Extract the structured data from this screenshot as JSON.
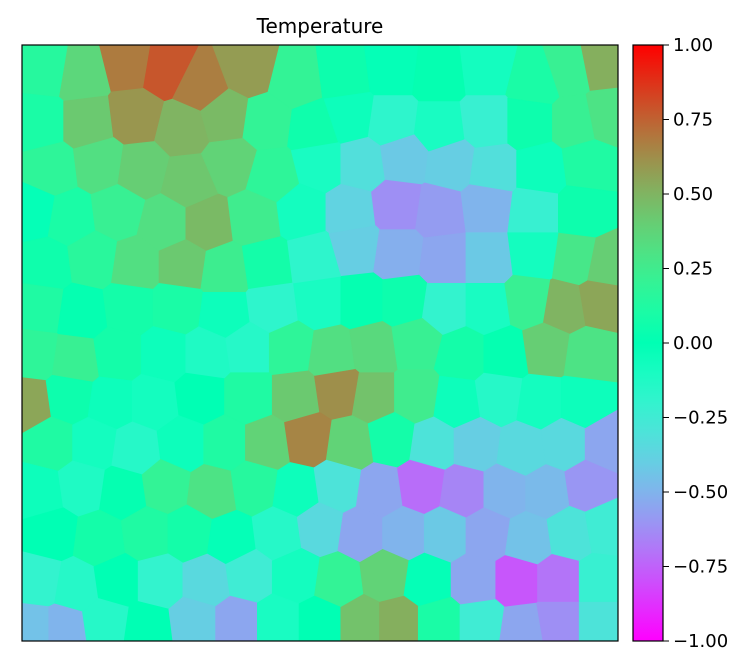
{
  "chart_data": {
    "type": "heatmap",
    "subtype": "voronoi",
    "title": "Temperature",
    "xlabel": "",
    "ylabel": "",
    "axis_ticks": "none",
    "colormap": "rainbow",
    "colorbar": {
      "range": [
        -1.0,
        1.0
      ],
      "ticks": [
        1.0,
        0.75,
        0.5,
        0.25,
        0.0,
        -0.25,
        -0.5,
        -0.75,
        -1.0
      ],
      "tick_labels": [
        "1.00",
        "0.75",
        "0.50",
        "0.25",
        "0.00",
        "−0.25",
        "−0.50",
        "−0.75",
        "−1.00"
      ],
      "placement": "right"
    },
    "cells": [
      {
        "x": 0.04,
        "y": 0.96,
        "value": 0.15
      },
      {
        "x": 0.1,
        "y": 0.95,
        "value": 0.36
      },
      {
        "x": 0.18,
        "y": 0.97,
        "value": 0.68
      },
      {
        "x": 0.24,
        "y": 0.96,
        "value": 0.78
      },
      {
        "x": 0.3,
        "y": 0.93,
        "value": 0.67
      },
      {
        "x": 0.38,
        "y": 0.96,
        "value": 0.58
      },
      {
        "x": 0.46,
        "y": 0.94,
        "value": 0.2
      },
      {
        "x": 0.54,
        "y": 0.95,
        "value": 0.05
      },
      {
        "x": 0.62,
        "y": 0.96,
        "value": -0.02
      },
      {
        "x": 0.7,
        "y": 0.95,
        "value": 0.02
      },
      {
        "x": 0.78,
        "y": 0.96,
        "value": -0.08
      },
      {
        "x": 0.86,
        "y": 0.94,
        "value": 0.1
      },
      {
        "x": 0.92,
        "y": 0.96,
        "value": 0.22
      },
      {
        "x": 0.97,
        "y": 0.97,
        "value": 0.52
      },
      {
        "x": 0.03,
        "y": 0.87,
        "value": 0.1
      },
      {
        "x": 0.11,
        "y": 0.87,
        "value": 0.42
      },
      {
        "x": 0.19,
        "y": 0.88,
        "value": 0.6
      },
      {
        "x": 0.27,
        "y": 0.86,
        "value": 0.5
      },
      {
        "x": 0.34,
        "y": 0.88,
        "value": 0.48
      },
      {
        "x": 0.41,
        "y": 0.87,
        "value": 0.2
      },
      {
        "x": 0.49,
        "y": 0.86,
        "value": 0.06
      },
      {
        "x": 0.55,
        "y": 0.88,
        "value": -0.05
      },
      {
        "x": 0.62,
        "y": 0.87,
        "value": -0.18
      },
      {
        "x": 0.7,
        "y": 0.86,
        "value": -0.1
      },
      {
        "x": 0.78,
        "y": 0.87,
        "value": -0.22
      },
      {
        "x": 0.85,
        "y": 0.87,
        "value": 0.05
      },
      {
        "x": 0.93,
        "y": 0.87,
        "value": 0.22
      },
      {
        "x": 0.98,
        "y": 0.88,
        "value": 0.3
      },
      {
        "x": 0.05,
        "y": 0.79,
        "value": 0.18
      },
      {
        "x": 0.13,
        "y": 0.8,
        "value": 0.32
      },
      {
        "x": 0.2,
        "y": 0.79,
        "value": 0.4
      },
      {
        "x": 0.28,
        "y": 0.77,
        "value": 0.43
      },
      {
        "x": 0.35,
        "y": 0.8,
        "value": 0.38
      },
      {
        "x": 0.42,
        "y": 0.78,
        "value": 0.18
      },
      {
        "x": 0.5,
        "y": 0.8,
        "value": -0.1
      },
      {
        "x": 0.57,
        "y": 0.8,
        "value": -0.32
      },
      {
        "x": 0.64,
        "y": 0.81,
        "value": -0.42
      },
      {
        "x": 0.72,
        "y": 0.8,
        "value": -0.4
      },
      {
        "x": 0.79,
        "y": 0.79,
        "value": -0.32
      },
      {
        "x": 0.87,
        "y": 0.79,
        "value": -0.05
      },
      {
        "x": 0.95,
        "y": 0.8,
        "value": 0.12
      },
      {
        "x": 0.02,
        "y": 0.72,
        "value": -0.02
      },
      {
        "x": 0.08,
        "y": 0.71,
        "value": 0.1
      },
      {
        "x": 0.16,
        "y": 0.72,
        "value": 0.22
      },
      {
        "x": 0.24,
        "y": 0.7,
        "value": 0.32
      },
      {
        "x": 0.31,
        "y": 0.7,
        "value": 0.48
      },
      {
        "x": 0.39,
        "y": 0.71,
        "value": 0.25
      },
      {
        "x": 0.47,
        "y": 0.72,
        "value": -0.08
      },
      {
        "x": 0.55,
        "y": 0.72,
        "value": -0.38
      },
      {
        "x": 0.63,
        "y": 0.73,
        "value": -0.62
      },
      {
        "x": 0.7,
        "y": 0.72,
        "value": -0.58
      },
      {
        "x": 0.78,
        "y": 0.73,
        "value": -0.5
      },
      {
        "x": 0.86,
        "y": 0.72,
        "value": -0.22
      },
      {
        "x": 0.94,
        "y": 0.72,
        "value": 0.05
      },
      {
        "x": 0.04,
        "y": 0.63,
        "value": 0.06
      },
      {
        "x": 0.12,
        "y": 0.64,
        "value": 0.16
      },
      {
        "x": 0.19,
        "y": 0.63,
        "value": 0.32
      },
      {
        "x": 0.27,
        "y": 0.63,
        "value": 0.42
      },
      {
        "x": 0.34,
        "y": 0.62,
        "value": 0.24
      },
      {
        "x": 0.41,
        "y": 0.63,
        "value": 0.08
      },
      {
        "x": 0.49,
        "y": 0.64,
        "value": -0.18
      },
      {
        "x": 0.56,
        "y": 0.66,
        "value": -0.4
      },
      {
        "x": 0.63,
        "y": 0.65,
        "value": -0.52
      },
      {
        "x": 0.71,
        "y": 0.64,
        "value": -0.55
      },
      {
        "x": 0.78,
        "y": 0.64,
        "value": -0.42
      },
      {
        "x": 0.86,
        "y": 0.65,
        "value": -0.08
      },
      {
        "x": 0.93,
        "y": 0.64,
        "value": 0.28
      },
      {
        "x": 0.98,
        "y": 0.63,
        "value": 0.4
      },
      {
        "x": 0.03,
        "y": 0.56,
        "value": 0.12
      },
      {
        "x": 0.1,
        "y": 0.55,
        "value": 0.02
      },
      {
        "x": 0.18,
        "y": 0.56,
        "value": 0.08
      },
      {
        "x": 0.26,
        "y": 0.56,
        "value": 0.1
      },
      {
        "x": 0.34,
        "y": 0.55,
        "value": -0.05
      },
      {
        "x": 0.42,
        "y": 0.56,
        "value": -0.18
      },
      {
        "x": 0.5,
        "y": 0.57,
        "value": -0.1
      },
      {
        "x": 0.57,
        "y": 0.57,
        "value": 0.02
      },
      {
        "x": 0.64,
        "y": 0.57,
        "value": 0.05
      },
      {
        "x": 0.71,
        "y": 0.56,
        "value": -0.2
      },
      {
        "x": 0.78,
        "y": 0.56,
        "value": -0.1
      },
      {
        "x": 0.85,
        "y": 0.57,
        "value": 0.22
      },
      {
        "x": 0.91,
        "y": 0.56,
        "value": 0.5
      },
      {
        "x": 0.97,
        "y": 0.57,
        "value": 0.55
      },
      {
        "x": 0.02,
        "y": 0.48,
        "value": 0.18
      },
      {
        "x": 0.09,
        "y": 0.47,
        "value": 0.22
      },
      {
        "x": 0.16,
        "y": 0.48,
        "value": 0.08
      },
      {
        "x": 0.24,
        "y": 0.48,
        "value": -0.05
      },
      {
        "x": 0.31,
        "y": 0.48,
        "value": -0.12
      },
      {
        "x": 0.38,
        "y": 0.49,
        "value": -0.15
      },
      {
        "x": 0.45,
        "y": 0.49,
        "value": 0.18
      },
      {
        "x": 0.52,
        "y": 0.48,
        "value": 0.32
      },
      {
        "x": 0.59,
        "y": 0.49,
        "value": 0.35
      },
      {
        "x": 0.66,
        "y": 0.5,
        "value": 0.22
      },
      {
        "x": 0.74,
        "y": 0.48,
        "value": 0.08
      },
      {
        "x": 0.81,
        "y": 0.48,
        "value": 0.02
      },
      {
        "x": 0.88,
        "y": 0.49,
        "value": 0.4
      },
      {
        "x": 0.95,
        "y": 0.48,
        "value": 0.3
      },
      {
        "x": 0.01,
        "y": 0.4,
        "value": 0.55
      },
      {
        "x": 0.08,
        "y": 0.41,
        "value": 0.05
      },
      {
        "x": 0.15,
        "y": 0.4,
        "value": -0.05
      },
      {
        "x": 0.22,
        "y": 0.4,
        "value": -0.08
      },
      {
        "x": 0.3,
        "y": 0.41,
        "value": 0.0
      },
      {
        "x": 0.38,
        "y": 0.41,
        "value": 0.12
      },
      {
        "x": 0.46,
        "y": 0.41,
        "value": 0.42
      },
      {
        "x": 0.53,
        "y": 0.42,
        "value": 0.62
      },
      {
        "x": 0.59,
        "y": 0.41,
        "value": 0.45
      },
      {
        "x": 0.66,
        "y": 0.41,
        "value": 0.25
      },
      {
        "x": 0.73,
        "y": 0.4,
        "value": -0.05
      },
      {
        "x": 0.8,
        "y": 0.41,
        "value": -0.15
      },
      {
        "x": 0.87,
        "y": 0.4,
        "value": -0.08
      },
      {
        "x": 0.94,
        "y": 0.4,
        "value": -0.05
      },
      {
        "x": 0.05,
        "y": 0.33,
        "value": 0.12
      },
      {
        "x": 0.12,
        "y": 0.33,
        "value": -0.08
      },
      {
        "x": 0.19,
        "y": 0.32,
        "value": -0.15
      },
      {
        "x": 0.27,
        "y": 0.33,
        "value": -0.05
      },
      {
        "x": 0.34,
        "y": 0.33,
        "value": 0.12
      },
      {
        "x": 0.41,
        "y": 0.33,
        "value": 0.38
      },
      {
        "x": 0.48,
        "y": 0.34,
        "value": 0.65
      },
      {
        "x": 0.55,
        "y": 0.33,
        "value": 0.38
      },
      {
        "x": 0.62,
        "y": 0.34,
        "value": 0.08
      },
      {
        "x": 0.69,
        "y": 0.33,
        "value": -0.3
      },
      {
        "x": 0.76,
        "y": 0.33,
        "value": -0.4
      },
      {
        "x": 0.84,
        "y": 0.32,
        "value": -0.35
      },
      {
        "x": 0.91,
        "y": 0.33,
        "value": -0.35
      },
      {
        "x": 0.98,
        "y": 0.33,
        "value": -0.55
      },
      {
        "x": 0.03,
        "y": 0.25,
        "value": -0.05
      },
      {
        "x": 0.1,
        "y": 0.26,
        "value": -0.12
      },
      {
        "x": 0.17,
        "y": 0.25,
        "value": 0.02
      },
      {
        "x": 0.24,
        "y": 0.26,
        "value": 0.2
      },
      {
        "x": 0.32,
        "y": 0.25,
        "value": 0.3
      },
      {
        "x": 0.39,
        "y": 0.26,
        "value": 0.15
      },
      {
        "x": 0.46,
        "y": 0.25,
        "value": -0.05
      },
      {
        "x": 0.53,
        "y": 0.26,
        "value": -0.3
      },
      {
        "x": 0.6,
        "y": 0.25,
        "value": -0.55
      },
      {
        "x": 0.67,
        "y": 0.26,
        "value": -0.72
      },
      {
        "x": 0.74,
        "y": 0.25,
        "value": -0.65
      },
      {
        "x": 0.81,
        "y": 0.25,
        "value": -0.5
      },
      {
        "x": 0.88,
        "y": 0.25,
        "value": -0.48
      },
      {
        "x": 0.95,
        "y": 0.26,
        "value": -0.6
      },
      {
        "x": 0.05,
        "y": 0.18,
        "value": 0.0
      },
      {
        "x": 0.13,
        "y": 0.17,
        "value": 0.08
      },
      {
        "x": 0.21,
        "y": 0.18,
        "value": 0.12
      },
      {
        "x": 0.28,
        "y": 0.18,
        "value": 0.08
      },
      {
        "x": 0.35,
        "y": 0.17,
        "value": -0.02
      },
      {
        "x": 0.43,
        "y": 0.18,
        "value": -0.15
      },
      {
        "x": 0.5,
        "y": 0.19,
        "value": -0.35
      },
      {
        "x": 0.57,
        "y": 0.18,
        "value": -0.55
      },
      {
        "x": 0.64,
        "y": 0.18,
        "value": -0.5
      },
      {
        "x": 0.71,
        "y": 0.18,
        "value": -0.42
      },
      {
        "x": 0.78,
        "y": 0.18,
        "value": -0.55
      },
      {
        "x": 0.85,
        "y": 0.17,
        "value": -0.45
      },
      {
        "x": 0.92,
        "y": 0.18,
        "value": -0.3
      },
      {
        "x": 0.98,
        "y": 0.19,
        "value": -0.25
      },
      {
        "x": 0.03,
        "y": 0.1,
        "value": -0.2
      },
      {
        "x": 0.09,
        "y": 0.09,
        "value": -0.15
      },
      {
        "x": 0.16,
        "y": 0.1,
        "value": 0.0
      },
      {
        "x": 0.23,
        "y": 0.1,
        "value": -0.2
      },
      {
        "x": 0.31,
        "y": 0.1,
        "value": -0.35
      },
      {
        "x": 0.38,
        "y": 0.11,
        "value": -0.25
      },
      {
        "x": 0.46,
        "y": 0.11,
        "value": -0.08
      },
      {
        "x": 0.53,
        "y": 0.1,
        "value": 0.2
      },
      {
        "x": 0.61,
        "y": 0.11,
        "value": 0.38
      },
      {
        "x": 0.68,
        "y": 0.1,
        "value": -0.02
      },
      {
        "x": 0.76,
        "y": 0.1,
        "value": -0.55
      },
      {
        "x": 0.83,
        "y": 0.1,
        "value": -0.78
      },
      {
        "x": 0.9,
        "y": 0.1,
        "value": -0.7
      },
      {
        "x": 0.97,
        "y": 0.1,
        "value": -0.22
      },
      {
        "x": 0.02,
        "y": 0.02,
        "value": -0.45
      },
      {
        "x": 0.07,
        "y": 0.02,
        "value": -0.5
      },
      {
        "x": 0.14,
        "y": 0.03,
        "value": -0.15
      },
      {
        "x": 0.21,
        "y": 0.02,
        "value": 0.0
      },
      {
        "x": 0.29,
        "y": 0.03,
        "value": -0.4
      },
      {
        "x": 0.36,
        "y": 0.03,
        "value": -0.55
      },
      {
        "x": 0.43,
        "y": 0.03,
        "value": -0.1
      },
      {
        "x": 0.5,
        "y": 0.03,
        "value": 0.0
      },
      {
        "x": 0.57,
        "y": 0.03,
        "value": 0.45
      },
      {
        "x": 0.63,
        "y": 0.03,
        "value": 0.52
      },
      {
        "x": 0.7,
        "y": 0.03,
        "value": 0.1
      },
      {
        "x": 0.77,
        "y": 0.03,
        "value": -0.25
      },
      {
        "x": 0.84,
        "y": 0.02,
        "value": -0.55
      },
      {
        "x": 0.9,
        "y": 0.03,
        "value": -0.62
      },
      {
        "x": 0.97,
        "y": 0.03,
        "value": -0.3
      }
    ]
  }
}
